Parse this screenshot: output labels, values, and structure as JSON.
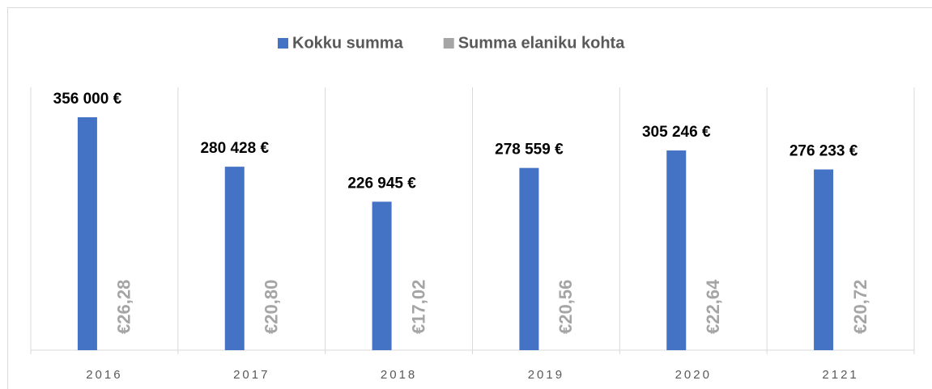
{
  "chart_data": {
    "type": "bar",
    "categories": [
      "2016",
      "2017",
      "2018",
      "2019",
      "2020",
      "2121"
    ],
    "series": [
      {
        "name": "Kokku summa",
        "color": "#4472c4",
        "values": [
          356000,
          280428,
          226945,
          278559,
          305246,
          276233
        ],
        "value_labels": [
          "356 000 €",
          "280 428 €",
          "226 945 €",
          "278 559 €",
          "305 246 €",
          "276 233 €"
        ]
      },
      {
        "name": "Summa elaniku kohta",
        "color": "#a5a5a5",
        "values": [
          26.28,
          20.8,
          17.02,
          20.56,
          22.64,
          20.72
        ],
        "value_labels": [
          "€26,28",
          "€20,80",
          "€17,02",
          "€20,56",
          "€22,64",
          "€20,72"
        ]
      }
    ],
    "ylim": [
      0,
      400000
    ],
    "legend": "top"
  }
}
